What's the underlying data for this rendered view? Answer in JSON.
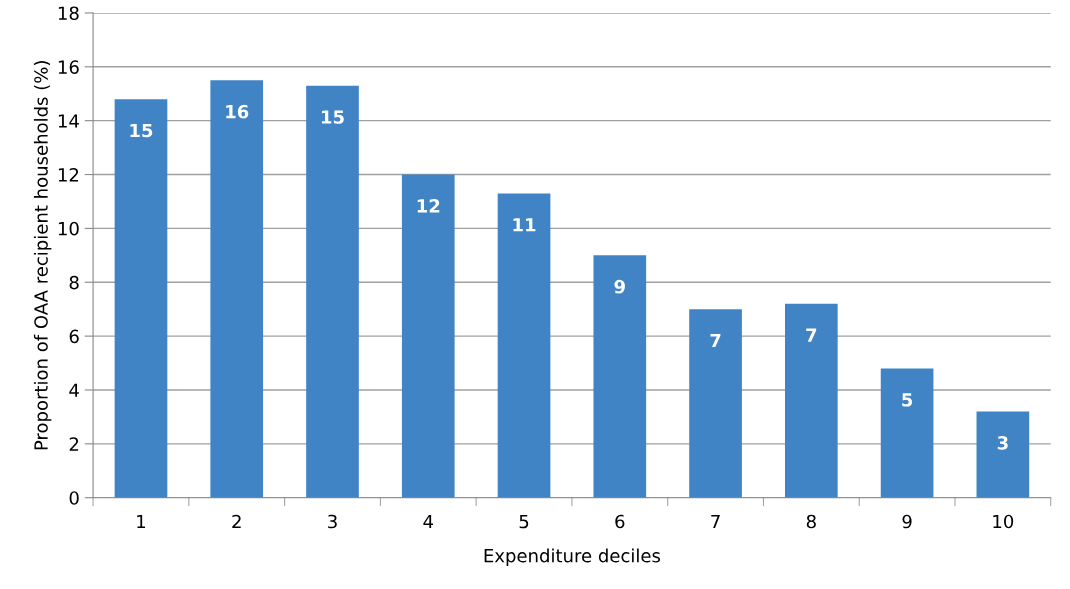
{
  "chart_data": {
    "type": "bar",
    "xlabel": "Expenditure deciles",
    "ylabel": "Proportion of OAA recipient households (%)",
    "categories": [
      "1",
      "2",
      "3",
      "4",
      "5",
      "6",
      "7",
      "8",
      "9",
      "10"
    ],
    "values": [
      14.8,
      15.5,
      15.3,
      12.0,
      11.3,
      9.0,
      7.0,
      7.2,
      4.8,
      3.2
    ],
    "value_labels": [
      "15",
      "16",
      "15",
      "12",
      "11",
      "9",
      "7",
      "7",
      "5",
      "3"
    ],
    "color": "#4084c6",
    "ylim": [
      0,
      18
    ],
    "yticks": [
      0,
      2,
      4,
      6,
      8,
      10,
      12,
      14,
      16,
      18
    ],
    "grid": "y",
    "legend": false
  }
}
